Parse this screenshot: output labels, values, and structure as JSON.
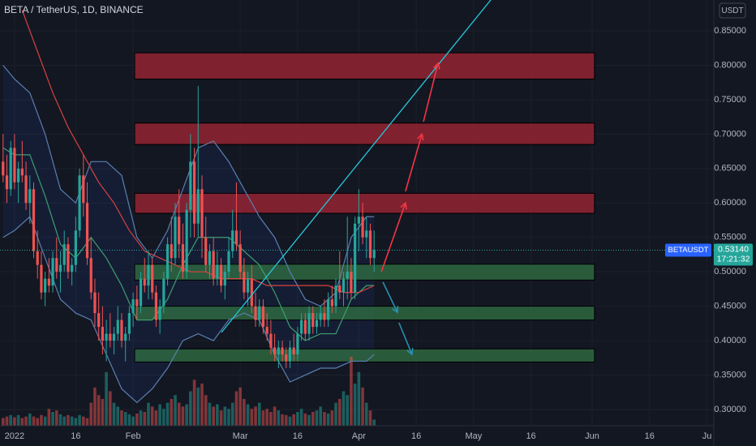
{
  "chart_data": {
    "type": "candlestick",
    "title": "BETA / TetherUS, 1D, BINANCE",
    "currency": "USDT",
    "x": [
      -3,
      -2,
      -1,
      0,
      1,
      2,
      3,
      4,
      5,
      6,
      7,
      8,
      9,
      10,
      11,
      12,
      13,
      14,
      15,
      16,
      17,
      18,
      19,
      20,
      21,
      22,
      23,
      24,
      25,
      26,
      27,
      28,
      29,
      30,
      31,
      32,
      33,
      34,
      35,
      36,
      37,
      38,
      39,
      40,
      41,
      42,
      43,
      44,
      45,
      46,
      47,
      48,
      49,
      50,
      51,
      52,
      53,
      54,
      55,
      56,
      57,
      58,
      59,
      60,
      61,
      62,
      63,
      64,
      65,
      66,
      67,
      68,
      69,
      70,
      71,
      72,
      73,
      74,
      75,
      76,
      77,
      78,
      79,
      80,
      81,
      82,
      83,
      84,
      85,
      86,
      87,
      88,
      89,
      90,
      91,
      92,
      93,
      94
    ],
    "ohlc": [
      [
        0.66,
        0.7,
        0.63,
        0.64
      ],
      [
        0.64,
        0.67,
        0.6,
        0.62
      ],
      [
        0.62,
        0.69,
        0.61,
        0.68
      ],
      [
        0.68,
        0.7,
        0.62,
        0.63
      ],
      [
        0.63,
        0.66,
        0.6,
        0.65
      ],
      [
        0.65,
        0.69,
        0.63,
        0.64
      ],
      [
        0.64,
        0.66,
        0.59,
        0.6
      ],
      [
        0.6,
        0.64,
        0.57,
        0.62
      ],
      [
        0.62,
        0.63,
        0.52,
        0.53
      ],
      [
        0.53,
        0.56,
        0.49,
        0.51
      ],
      [
        0.51,
        0.53,
        0.46,
        0.47
      ],
      [
        0.47,
        0.5,
        0.45,
        0.49
      ],
      [
        0.49,
        0.52,
        0.47,
        0.48
      ],
      [
        0.48,
        0.53,
        0.47,
        0.52
      ],
      [
        0.52,
        0.55,
        0.49,
        0.5
      ],
      [
        0.5,
        0.53,
        0.47,
        0.51
      ],
      [
        0.51,
        0.56,
        0.5,
        0.54
      ],
      [
        0.54,
        0.55,
        0.49,
        0.5
      ],
      [
        0.5,
        0.52,
        0.48,
        0.51
      ],
      [
        0.51,
        0.58,
        0.5,
        0.56
      ],
      [
        0.56,
        0.65,
        0.55,
        0.64
      ],
      [
        0.64,
        0.67,
        0.58,
        0.6
      ],
      [
        0.6,
        0.63,
        0.51,
        0.52
      ],
      [
        0.52,
        0.55,
        0.46,
        0.47
      ],
      [
        0.47,
        0.49,
        0.42,
        0.44
      ],
      [
        0.44,
        0.47,
        0.4,
        0.42
      ],
      [
        0.42,
        0.45,
        0.38,
        0.4
      ],
      [
        0.4,
        0.43,
        0.37,
        0.41
      ],
      [
        0.41,
        0.44,
        0.39,
        0.4
      ],
      [
        0.4,
        0.42,
        0.38,
        0.41
      ],
      [
        0.41,
        0.45,
        0.4,
        0.43
      ],
      [
        0.43,
        0.44,
        0.39,
        0.4
      ],
      [
        0.4,
        0.42,
        0.37,
        0.41
      ],
      [
        0.41,
        0.45,
        0.4,
        0.44
      ],
      [
        0.44,
        0.47,
        0.42,
        0.46
      ],
      [
        0.46,
        0.48,
        0.43,
        0.45
      ],
      [
        0.45,
        0.5,
        0.44,
        0.49
      ],
      [
        0.49,
        0.52,
        0.47,
        0.48
      ],
      [
        0.48,
        0.53,
        0.46,
        0.51
      ],
      [
        0.51,
        0.52,
        0.46,
        0.47
      ],
      [
        0.47,
        0.48,
        0.42,
        0.43
      ],
      [
        0.43,
        0.46,
        0.41,
        0.45
      ],
      [
        0.45,
        0.5,
        0.44,
        0.49
      ],
      [
        0.49,
        0.55,
        0.48,
        0.54
      ],
      [
        0.54,
        0.58,
        0.5,
        0.52
      ],
      [
        0.52,
        0.6,
        0.51,
        0.58
      ],
      [
        0.58,
        0.62,
        0.52,
        0.54
      ],
      [
        0.54,
        0.57,
        0.49,
        0.5
      ],
      [
        0.5,
        0.6,
        0.49,
        0.59
      ],
      [
        0.59,
        0.7,
        0.55,
        0.66
      ],
      [
        0.66,
        0.68,
        0.55,
        0.57
      ],
      [
        0.57,
        0.77,
        0.55,
        0.62
      ],
      [
        0.62,
        0.64,
        0.52,
        0.55
      ],
      [
        0.55,
        0.58,
        0.5,
        0.51
      ],
      [
        0.51,
        0.54,
        0.49,
        0.53
      ],
      [
        0.53,
        0.55,
        0.48,
        0.49
      ],
      [
        0.49,
        0.53,
        0.48,
        0.51
      ],
      [
        0.51,
        0.52,
        0.47,
        0.48
      ],
      [
        0.48,
        0.51,
        0.46,
        0.5
      ],
      [
        0.5,
        0.55,
        0.49,
        0.53
      ],
      [
        0.53,
        0.59,
        0.52,
        0.56
      ],
      [
        0.56,
        0.63,
        0.53,
        0.54
      ],
      [
        0.54,
        0.56,
        0.49,
        0.5
      ],
      [
        0.5,
        0.52,
        0.46,
        0.47
      ],
      [
        0.47,
        0.5,
        0.45,
        0.49
      ],
      [
        0.49,
        0.51,
        0.44,
        0.45
      ],
      [
        0.45,
        0.47,
        0.42,
        0.43
      ],
      [
        0.43,
        0.46,
        0.42,
        0.45
      ],
      [
        0.45,
        0.46,
        0.41,
        0.42
      ],
      [
        0.42,
        0.44,
        0.4,
        0.41
      ],
      [
        0.41,
        0.43,
        0.38,
        0.39
      ],
      [
        0.39,
        0.41,
        0.37,
        0.38
      ],
      [
        0.38,
        0.4,
        0.36,
        0.39
      ],
      [
        0.39,
        0.4,
        0.37,
        0.38
      ],
      [
        0.38,
        0.39,
        0.36,
        0.37
      ],
      [
        0.37,
        0.4,
        0.36,
        0.39
      ],
      [
        0.39,
        0.41,
        0.37,
        0.38
      ],
      [
        0.38,
        0.42,
        0.37,
        0.41
      ],
      [
        0.41,
        0.44,
        0.4,
        0.43
      ],
      [
        0.43,
        0.44,
        0.4,
        0.41
      ],
      [
        0.41,
        0.45,
        0.4,
        0.44
      ],
      [
        0.44,
        0.45,
        0.41,
        0.42
      ],
      [
        0.42,
        0.44,
        0.41,
        0.43
      ],
      [
        0.43,
        0.45,
        0.42,
        0.44
      ],
      [
        0.44,
        0.46,
        0.42,
        0.43
      ],
      [
        0.43,
        0.47,
        0.42,
        0.46
      ],
      [
        0.46,
        0.48,
        0.44,
        0.45
      ],
      [
        0.45,
        0.49,
        0.44,
        0.48
      ],
      [
        0.48,
        0.53,
        0.46,
        0.47
      ],
      [
        0.47,
        0.5,
        0.45,
        0.49
      ],
      [
        0.49,
        0.58,
        0.46,
        0.5
      ],
      [
        0.5,
        0.52,
        0.46,
        0.47
      ],
      [
        0.47,
        0.58,
        0.46,
        0.57
      ],
      [
        0.57,
        0.62,
        0.53,
        0.58
      ],
      [
        0.58,
        0.6,
        0.54,
        0.55
      ],
      [
        0.55,
        0.58,
        0.52,
        0.56
      ],
      [
        0.56,
        0.57,
        0.51,
        0.52
      ],
      [
        0.52,
        0.56,
        0.5,
        0.5314
      ]
    ],
    "volume": [
      10,
      12,
      14,
      11,
      14,
      10,
      12,
      16,
      12,
      10,
      14,
      12,
      22,
      18,
      20,
      15,
      12,
      14,
      12,
      10,
      14,
      12,
      10,
      30,
      50,
      40,
      35,
      70,
      45,
      30,
      25,
      20,
      18,
      15,
      12,
      16,
      20,
      18,
      30,
      25,
      20,
      28,
      22,
      30,
      35,
      40,
      30,
      25,
      28,
      45,
      60,
      50,
      55,
      40,
      30,
      25,
      28,
      20,
      25,
      22,
      30,
      45,
      50,
      35,
      28,
      22,
      25,
      30,
      20,
      22,
      18,
      25,
      20,
      15,
      14,
      12,
      15,
      18,
      22,
      16,
      14,
      18,
      20,
      25,
      18,
      16,
      20,
      30,
      35,
      45,
      40,
      90,
      55,
      70,
      50,
      30,
      20,
      8
    ],
    "up_color": "#26a69a",
    "down_color": "#ef5350",
    "lines": [
      {
        "color": "#5b7fae",
        "x": [
          -3,
          0,
          4,
          8,
          12,
          16,
          20,
          24,
          28,
          32,
          36,
          40,
          44,
          48,
          52,
          56,
          60,
          64,
          68,
          72,
          76,
          80,
          84,
          88,
          92,
          94
        ],
        "values": [
          0.8,
          0.78,
          0.76,
          0.7,
          0.62,
          0.6,
          0.66,
          0.66,
          0.64,
          0.55,
          0.52,
          0.56,
          0.62,
          0.68,
          0.69,
          0.66,
          0.62,
          0.58,
          0.55,
          0.5,
          0.46,
          0.45,
          0.47,
          0.55,
          0.58,
          0.58
        ]
      },
      {
        "color": "#5b7fae",
        "x": [
          -3,
          0,
          4,
          8,
          12,
          16,
          20,
          24,
          28,
          32,
          36,
          40,
          44,
          48,
          52,
          56,
          60,
          64,
          68,
          72,
          76,
          80,
          84,
          88,
          92,
          94
        ],
        "values": [
          0.55,
          0.56,
          0.58,
          0.52,
          0.46,
          0.44,
          0.43,
          0.38,
          0.33,
          0.31,
          0.33,
          0.36,
          0.4,
          0.41,
          0.4,
          0.43,
          0.44,
          0.43,
          0.38,
          0.34,
          0.35,
          0.36,
          0.36,
          0.37,
          0.37,
          0.38
        ]
      },
      {
        "color": "#3d9e6e",
        "x": [
          -3,
          0,
          4,
          8,
          12,
          16,
          20,
          24,
          28,
          32,
          36,
          40,
          44,
          48,
          52,
          56,
          60,
          64,
          68,
          72,
          76,
          80,
          84,
          88,
          92,
          94
        ],
        "values": [
          0.68,
          0.67,
          0.67,
          0.61,
          0.54,
          0.52,
          0.55,
          0.52,
          0.48,
          0.43,
          0.43,
          0.46,
          0.51,
          0.55,
          0.55,
          0.55,
          0.53,
          0.51,
          0.47,
          0.42,
          0.4,
          0.41,
          0.41,
          0.46,
          0.48,
          0.48
        ]
      },
      {
        "color": "#d9413f",
        "x": [
          2,
          6,
          10,
          14,
          18,
          22,
          26,
          30,
          34,
          38,
          42,
          46,
          50,
          54,
          58,
          62,
          66,
          70,
          74,
          78,
          82,
          86,
          90,
          94
        ],
        "values": [
          0.88,
          0.82,
          0.76,
          0.71,
          0.67,
          0.63,
          0.6,
          0.56,
          0.53,
          0.52,
          0.51,
          0.5,
          0.5,
          0.49,
          0.49,
          0.49,
          0.48,
          0.48,
          0.48,
          0.48,
          0.48,
          0.47,
          0.47,
          0.48
        ]
      }
    ],
    "zones": [
      {
        "x": [
          31.4,
          151.6
        ],
        "y": [
          0.78,
          0.818
        ],
        "color": "#9b2433"
      },
      {
        "x": [
          31.4,
          151.6
        ],
        "y": [
          0.685,
          0.716
        ],
        "color": "#9b2433"
      },
      {
        "x": [
          31.4,
          151.6
        ],
        "y": [
          0.585,
          0.614
        ],
        "color": "#9b2433"
      },
      {
        "x": [
          31.4,
          151.6
        ],
        "y": [
          0.488,
          0.511
        ],
        "color": "#2f6d42"
      },
      {
        "x": [
          31.4,
          151.6
        ],
        "y": [
          0.43,
          0.45
        ],
        "color": "#2f6d42"
      },
      {
        "x": [
          31.4,
          151.6
        ],
        "y": [
          0.369,
          0.388
        ],
        "color": "#2f6d42"
      }
    ],
    "trendline": {
      "x": [
        54.1,
        124.5
      ],
      "y": [
        0.412,
        0.895
      ],
      "color": "#26c6da"
    },
    "arrows": [
      {
        "x": [
          95.9,
          102.2
        ],
        "y": [
          0.5,
          0.6
        ],
        "color": "#f23645"
      },
      {
        "x": [
          102.2,
          106.5
        ],
        "y": [
          0.617,
          0.7
        ],
        "color": "#f23645"
      },
      {
        "x": [
          106.9,
          110.7
        ],
        "y": [
          0.718,
          0.803
        ],
        "color": "#f23645"
      },
      {
        "x": [
          96.3,
          100.1
        ],
        "y": [
          0.485,
          0.441
        ],
        "color": "#2a8fb0"
      },
      {
        "x": [
          100.5,
          103.9
        ],
        "y": [
          0.426,
          0.38
        ],
        "color": "#2a8fb0"
      }
    ],
    "last_price": {
      "symbol": "BETAUSDT",
      "price": {
        "value": 0.5314,
        "label": "0.53140"
      },
      "countdown": "17:21:32"
    },
    "xlim": [
      -3.8,
      182.8
    ],
    "ylim": [
      0.2764,
      0.8948
    ],
    "xticks": [
      {
        "value": 0,
        "label": "2022"
      },
      16,
      {
        "value": 31,
        "label": "Feb"
      },
      {
        "value": 59,
        "label": "Mar"
      },
      {
        "value": 74,
        "label": "16"
      },
      {
        "value": 90,
        "label": "Apr"
      },
      {
        "value": 105,
        "label": "16"
      },
      {
        "value": 120,
        "label": "May"
      },
      {
        "value": 135,
        "label": "16"
      },
      {
        "value": 151,
        "label": "Jun"
      },
      {
        "value": 166,
        "label": "16"
      },
      {
        "value": 181,
        "label": "Ju"
      }
    ],
    "yticks": [
      {
        "value": 0.3,
        "label": "0.30000"
      },
      {
        "value": 0.35,
        "label": "0.35000"
      },
      {
        "value": 0.4,
        "label": "0.40000"
      },
      {
        "value": 0.45,
        "label": "0.45000"
      },
      {
        "value": 0.5,
        "label": "0.50000"
      },
      {
        "value": 0.55,
        "label": "0.55000"
      },
      {
        "value": 0.6,
        "label": "0.60000"
      },
      {
        "value": 0.65,
        "label": "0.65000"
      },
      {
        "value": 0.7,
        "label": "0.70000"
      },
      {
        "value": 0.75,
        "label": "0.75000"
      },
      {
        "value": 0.8,
        "label": "0.80000"
      },
      {
        "value": 0.85,
        "label": "0.85000"
      }
    ],
    "grid": true
  }
}
